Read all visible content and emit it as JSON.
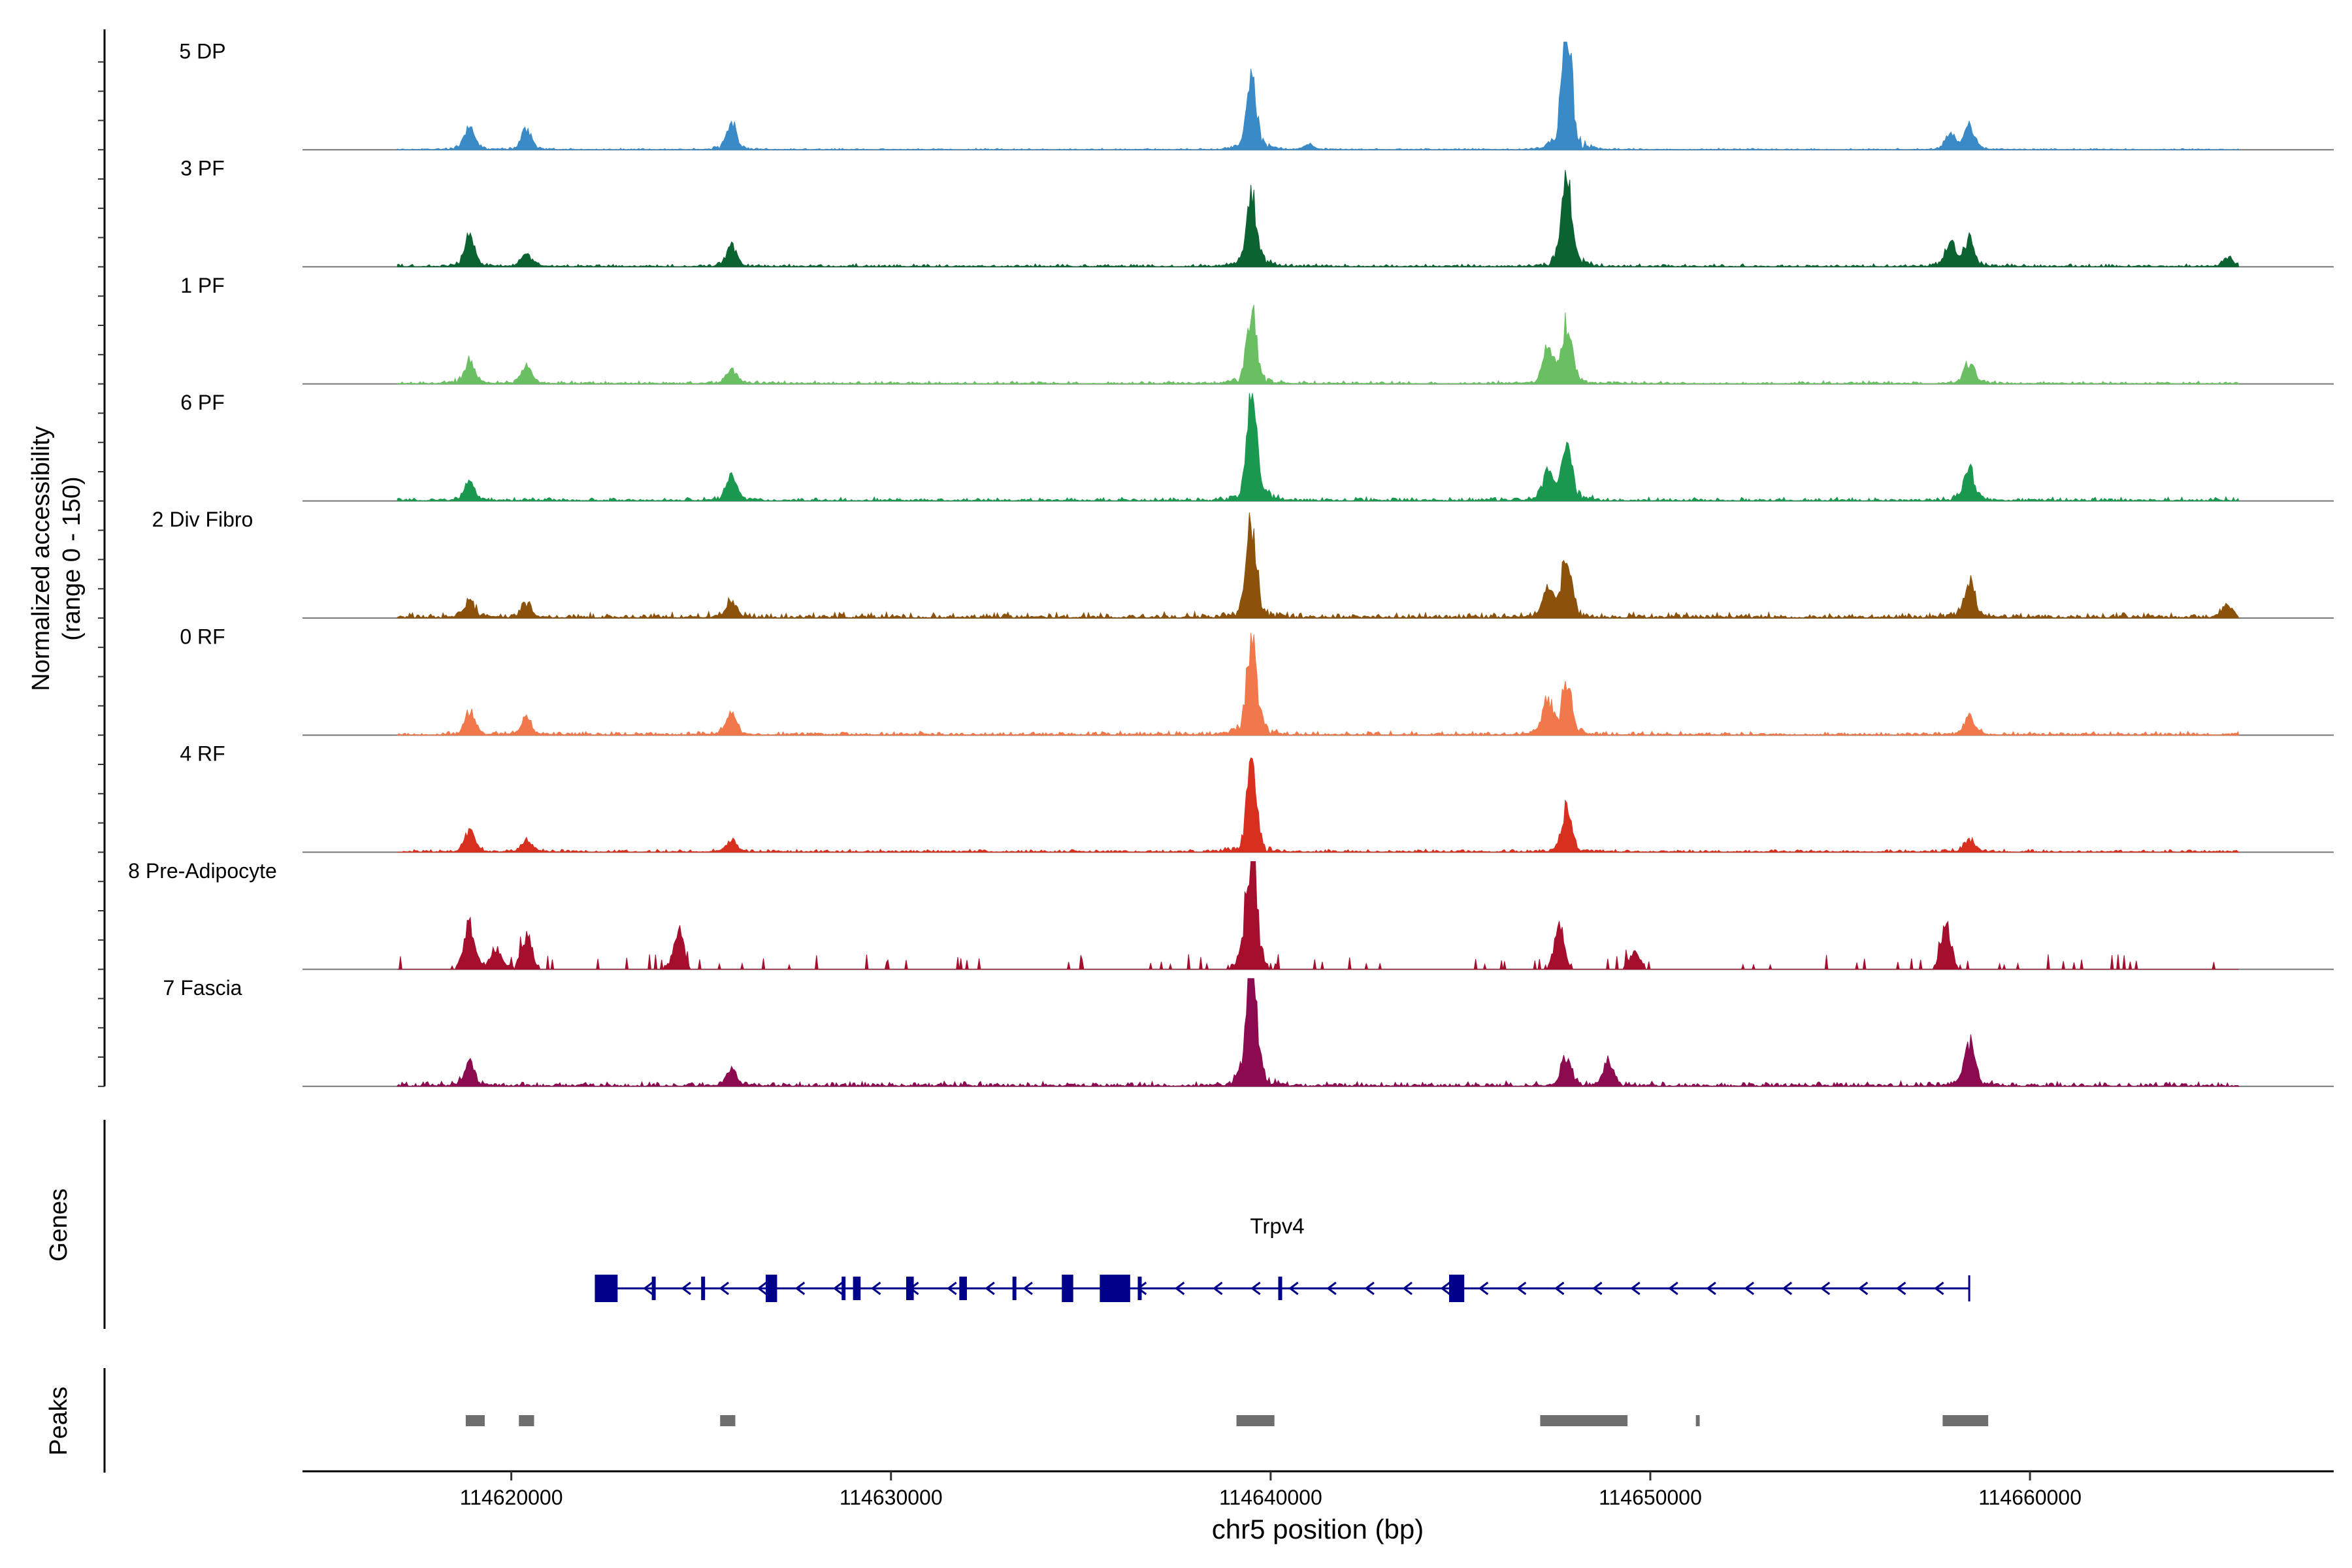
{
  "chart_data": {
    "type": "area",
    "title": "",
    "chromosome": "chr5",
    "xlabel": "chr5 position (bp)",
    "ylabel_line1": "Normalized accessibility",
    "ylabel_line2": "(range 0 - 150)",
    "xlim": [
      114614500,
      114668000
    ],
    "data_xrange": [
      114617000,
      114665500
    ],
    "y_range": [
      0,
      150
    ],
    "x_ticks": [
      114620000,
      114630000,
      114640000,
      114650000,
      114660000
    ],
    "x_tick_labels": [
      "114620000",
      "114630000",
      "114640000",
      "114650000",
      "114660000"
    ],
    "series": [
      {
        "name": "5 DP",
        "color": "#3a8ac7",
        "sparse": false,
        "base": 0.015,
        "peaks": [
          [
            114618900,
            20
          ],
          [
            114620400,
            18
          ],
          [
            114625800,
            22
          ],
          [
            114639500,
            60
          ],
          [
            114647800,
            100
          ],
          [
            114658400,
            20
          ],
          [
            114657900,
            12
          ],
          [
            114641000,
            5
          ]
        ]
      },
      {
        "name": "3 PF",
        "color": "#0b6331",
        "sparse": false,
        "base": 0.03,
        "peaks": [
          [
            114618900,
            25
          ],
          [
            114620400,
            12
          ],
          [
            114625800,
            18
          ],
          [
            114639500,
            62
          ],
          [
            114647800,
            78
          ],
          [
            114658400,
            25
          ],
          [
            114657900,
            20
          ],
          [
            114665200,
            8
          ]
        ]
      },
      {
        "name": "1 PF",
        "color": "#6bbf63",
        "sparse": false,
        "base": 0.03,
        "peaks": [
          [
            114618900,
            20
          ],
          [
            114620400,
            15
          ],
          [
            114625800,
            12
          ],
          [
            114639500,
            58
          ],
          [
            114647800,
            48
          ],
          [
            114647300,
            32
          ],
          [
            114658400,
            18
          ]
        ]
      },
      {
        "name": "6 PF",
        "color": "#1a9850",
        "sparse": false,
        "base": 0.04,
        "peaks": [
          [
            114618900,
            15
          ],
          [
            114625800,
            22
          ],
          [
            114639500,
            88
          ],
          [
            114647800,
            52
          ],
          [
            114647300,
            25
          ],
          [
            114658400,
            28
          ]
        ]
      },
      {
        "name": "2 Div Fibro",
        "color": "#8c510a",
        "sparse": false,
        "base": 0.06,
        "peaks": [
          [
            114618900,
            15
          ],
          [
            114620400,
            12
          ],
          [
            114625800,
            14
          ],
          [
            114639500,
            78
          ],
          [
            114647800,
            52
          ],
          [
            114647300,
            25
          ],
          [
            114658400,
            30
          ],
          [
            114665200,
            10
          ]
        ]
      },
      {
        "name": "0 RF",
        "color": "#f0784a",
        "sparse": false,
        "base": 0.04,
        "peaks": [
          [
            114618900,
            20
          ],
          [
            114620400,
            15
          ],
          [
            114625800,
            18
          ],
          [
            114639500,
            85
          ],
          [
            114647800,
            42
          ],
          [
            114647300,
            28
          ],
          [
            114658400,
            15
          ]
        ]
      },
      {
        "name": "4 RF",
        "color": "#d7301f",
        "sparse": false,
        "base": 0.03,
        "peaks": [
          [
            114618900,
            18
          ],
          [
            114620400,
            10
          ],
          [
            114625800,
            10
          ],
          [
            114639500,
            70
          ],
          [
            114647800,
            38
          ],
          [
            114658400,
            12
          ]
        ]
      },
      {
        "name": "8 Pre-Adipocyte",
        "color": "#a50f2d",
        "sparse": true,
        "base": 0.0,
        "peaks": [
          [
            114618900,
            40
          ],
          [
            114620400,
            28
          ],
          [
            114624400,
            32
          ],
          [
            114639500,
            110
          ],
          [
            114647600,
            36
          ],
          [
            114657800,
            35
          ],
          [
            114619600,
            18
          ],
          [
            114649600,
            15
          ]
        ]
      },
      {
        "name": "7 Fascia",
        "color": "#8b0a50",
        "sparse": false,
        "base": 0.05,
        "peaks": [
          [
            114618900,
            20
          ],
          [
            114625800,
            14
          ],
          [
            114639500,
            110
          ],
          [
            114647800,
            25
          ],
          [
            114648900,
            20
          ],
          [
            114658400,
            38
          ]
        ]
      }
    ],
    "genes_label": "Genes",
    "gene": {
      "name": "Trpv4",
      "start": 114622200,
      "end": 114658400,
      "strand": "-",
      "exons": [
        [
          114622200,
          114622800
        ],
        [
          114623700,
          114623800
        ],
        [
          114625000,
          114625100
        ],
        [
          114626700,
          114627000
        ],
        [
          114628700,
          114628800
        ],
        [
          114629000,
          114629200
        ],
        [
          114630400,
          114630600
        ],
        [
          114631800,
          114632000
        ],
        [
          114633200,
          114633300
        ],
        [
          114634500,
          114634800
        ],
        [
          114635500,
          114636300
        ],
        [
          114636500,
          114636600
        ],
        [
          114640200,
          114640300
        ],
        [
          114644700,
          114645100
        ]
      ],
      "color": "#00008b"
    },
    "peaks_label": "Peaks",
    "peak_regions": [
      [
        114618800,
        114619300
      ],
      [
        114620200,
        114620600
      ],
      [
        114625500,
        114625900
      ],
      [
        114639100,
        114640100
      ],
      [
        114647100,
        114649400
      ],
      [
        114651200,
        114651300
      ],
      [
        114657700,
        114658900
      ]
    ],
    "peak_color": "#6e6e6e"
  }
}
